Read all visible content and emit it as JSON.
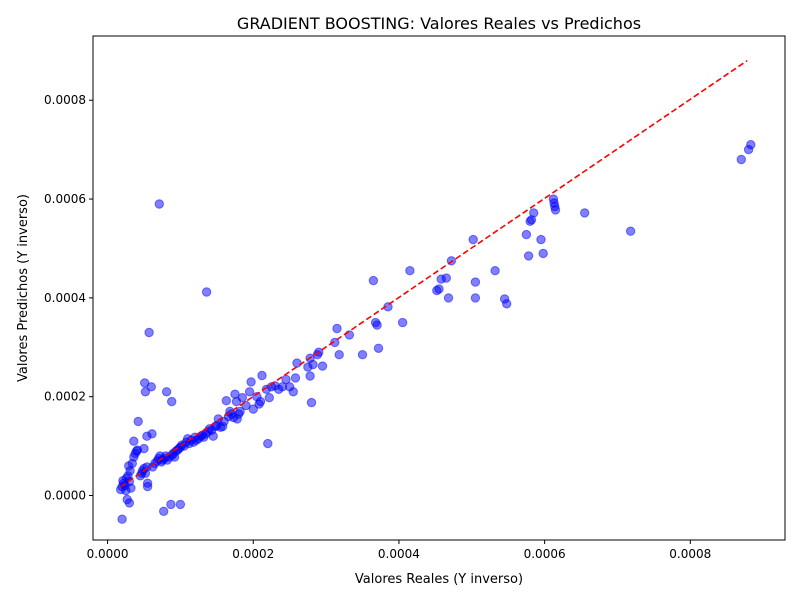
{
  "chart_data": {
    "type": "scatter",
    "title": "GRADIENT BOOSTING: Valores Reales vs Predichos",
    "xlabel": "Valores Reales (Y inverso)",
    "ylabel": "Valores Predichos (Y inverso)",
    "xlim": [
      -2e-05,
      0.00093
    ],
    "ylim": [
      -9e-05,
      0.00093
    ],
    "xticks": [
      0,
      0.0002,
      0.0004,
      0.0006,
      0.0008
    ],
    "xtick_labels": [
      "0.0000",
      "0.0002",
      "0.0004",
      "0.0006",
      "0.0008"
    ],
    "yticks": [
      0,
      0.0002,
      0.0004,
      0.0006,
      0.0008
    ],
    "ytick_labels": [
      "0.0000",
      "0.0002",
      "0.0004",
      "0.0006",
      "0.0008"
    ],
    "grid": false,
    "point_color": "#0000ff",
    "point_alpha": 0.5,
    "reference_line": {
      "color": "#ff0000",
      "style": "dashed",
      "from": [
        1.8e-05,
        1.8e-05
      ],
      "to": [
        0.000878,
        0.00088
      ]
    },
    "points": [
      [
        1.8e-05,
        1.2e-05
      ],
      [
        2e-05,
        1.8e-05
      ],
      [
        2.2e-05,
        2.5e-05
      ],
      [
        2.4e-05,
        2e-05
      ],
      [
        2.1e-05,
        3e-05
      ],
      [
        2.5e-05,
        1e-05
      ],
      [
        2.6e-05,
        3.5e-05
      ],
      [
        2.8e-05,
        4e-05
      ],
      [
        3e-05,
        2.8e-05
      ],
      [
        3.1e-05,
        5e-05
      ],
      [
        2.9e-05,
        6e-05
      ],
      [
        3.2e-05,
        1.5e-05
      ],
      [
        2.7e-05,
        -8e-06
      ],
      [
        3e-05,
        -1.5e-05
      ],
      [
        2e-05,
        -4.8e-05
      ],
      [
        3.4e-05,
        6.5e-05
      ],
      [
        3.6e-05,
        7.8e-05
      ],
      [
        3.8e-05,
        8.5e-05
      ],
      [
        4e-05,
        9e-05
      ],
      [
        4.1e-05,
        9.2e-05
      ],
      [
        3.6e-05,
        0.00011
      ],
      [
        4.2e-05,
        0.00015
      ],
      [
        4.5e-05,
        4e-05
      ],
      [
        4.7e-05,
        4.5e-05
      ],
      [
        4.8e-05,
        5e-05
      ],
      [
        5e-05,
        5.5e-05
      ],
      [
        5.2e-05,
        4.5e-05
      ],
      [
        5.4e-05,
        5.8e-05
      ],
      [
        5.5e-05,
        2.5e-05
      ],
      [
        5.5e-05,
        1.8e-05
      ],
      [
        5e-05,
        9.5e-05
      ],
      [
        5.2e-05,
        0.00021
      ],
      [
        5.1e-05,
        0.000228
      ],
      [
        5.4e-05,
        0.00012
      ],
      [
        5.7e-05,
        0.00033
      ],
      [
        6e-05,
        0.00022
      ],
      [
        6.1e-05,
        0.000125
      ],
      [
        6.2e-05,
        5.8e-05
      ],
      [
        6.5e-05,
        6.5e-05
      ],
      [
        6.8e-05,
        7e-05
      ],
      [
        7e-05,
        7.5e-05
      ],
      [
        7.1e-05,
        0.00059
      ],
      [
        7.2e-05,
        8e-05
      ],
      [
        7.4e-05,
        6.8e-05
      ],
      [
        7.5e-05,
        7.2e-05
      ],
      [
        7.7e-05,
        -3.2e-05
      ],
      [
        7.8e-05,
        7.5e-05
      ],
      [
        8e-05,
        8e-05
      ],
      [
        8.1e-05,
        0.00021
      ],
      [
        8.2e-05,
        7.2e-05
      ],
      [
        8.5e-05,
        7.8e-05
      ],
      [
        8.7e-05,
        -1.8e-05
      ],
      [
        8.8e-05,
        0.00019
      ],
      [
        8.9e-05,
        8.2e-05
      ],
      [
        9e-05,
        8.5e-05
      ],
      [
        9.2e-05,
        7.8e-05
      ],
      [
        9.4e-05,
        9e-05
      ],
      [
        9.6e-05,
        9.2e-05
      ],
      [
        9.8e-05,
        9.5e-05
      ],
      [
        0.0001,
        9.8e-05
      ],
      [
        0.0001,
        -1.8e-05
      ],
      [
        0.000102,
        0.000102
      ],
      [
        0.000105,
        0.0001
      ],
      [
        0.000108,
        0.000108
      ],
      [
        0.00011,
        0.000115
      ],
      [
        0.000112,
        0.000105
      ],
      [
        0.000115,
        0.000112
      ],
      [
        0.000118,
        0.000108
      ],
      [
        0.00012,
        0.000118
      ],
      [
        0.000122,
        0.000112
      ],
      [
        0.000125,
        0.000115
      ],
      [
        0.000128,
        0.00012
      ],
      [
        0.00013,
        0.000122
      ],
      [
        0.000132,
        0.000118
      ],
      [
        0.000135,
        0.000125
      ],
      [
        0.000136,
        0.000412
      ],
      [
        0.000138,
        0.00013
      ],
      [
        0.00014,
        0.000135
      ],
      [
        0.000143,
        0.000132
      ],
      [
        0.000145,
        0.00012
      ],
      [
        0.000148,
        0.00014
      ],
      [
        0.00015,
        0.000142
      ],
      [
        0.000152,
        0.000155
      ],
      [
        0.000155,
        0.000138
      ],
      [
        0.000158,
        0.00014
      ],
      [
        0.00016,
        0.00015
      ],
      [
        0.000163,
        0.000192
      ],
      [
        0.000166,
        0.00016
      ],
      [
        0.000168,
        0.00017
      ],
      [
        0.00017,
        0.000165
      ],
      [
        0.000173,
        0.000158
      ],
      [
        0.000175,
        0.000205
      ],
      [
        0.000177,
        0.00019
      ],
      [
        0.000178,
        0.000155
      ],
      [
        0.00018,
        0.000165
      ],
      [
        0.000182,
        0.00017
      ],
      [
        0.000185,
        0.000198
      ],
      [
        0.00019,
        0.000182
      ],
      [
        0.000195,
        0.00021
      ],
      [
        0.000197,
        0.00023
      ],
      [
        0.0002,
        0.000175
      ],
      [
        0.000205,
        0.0002
      ],
      [
        0.000208,
        0.000185
      ],
      [
        0.00021,
        0.00019
      ],
      [
        0.000212,
        0.000243
      ],
      [
        0.000218,
        0.000215
      ],
      [
        0.00022,
        0.000105
      ],
      [
        0.000222,
        0.000198
      ],
      [
        0.000225,
        0.00022
      ],
      [
        0.00023,
        0.000222
      ],
      [
        0.000235,
        0.000215
      ],
      [
        0.00024,
        0.00022
      ],
      [
        0.000245,
        0.000235
      ],
      [
        0.00025,
        0.00022
      ],
      [
        0.000255,
        0.00021
      ],
      [
        0.000258,
        0.000238
      ],
      [
        0.00026,
        0.000268
      ],
      [
        0.000275,
        0.00026
      ],
      [
        0.000278,
        0.000278
      ],
      [
        0.000278,
        0.000242
      ],
      [
        0.00028,
        0.000188
      ],
      [
        0.000282,
        0.000265
      ],
      [
        0.000288,
        0.000285
      ],
      [
        0.00029,
        0.00029
      ],
      [
        0.000295,
        0.000262
      ],
      [
        0.000312,
        0.00031
      ],
      [
        0.000315,
        0.000338
      ],
      [
        0.000318,
        0.000285
      ],
      [
        0.000332,
        0.000325
      ],
      [
        0.00035,
        0.000285
      ],
      [
        0.000365,
        0.000435
      ],
      [
        0.000368,
        0.00035
      ],
      [
        0.00037,
        0.000345
      ],
      [
        0.000372,
        0.000298
      ],
      [
        0.000385,
        0.000382
      ],
      [
        0.000405,
        0.00035
      ],
      [
        0.000415,
        0.000455
      ],
      [
        0.000452,
        0.000415
      ],
      [
        0.000455,
        0.000418
      ],
      [
        0.000458,
        0.000438
      ],
      [
        0.000465,
        0.00044
      ],
      [
        0.000468,
        0.0004
      ],
      [
        0.000472,
        0.000475
      ],
      [
        0.000502,
        0.000518
      ],
      [
        0.000505,
        0.0004
      ],
      [
        0.000505,
        0.000432
      ],
      [
        0.000532,
        0.000455
      ],
      [
        0.000545,
        0.000398
      ],
      [
        0.000548,
        0.000388
      ],
      [
        0.000575,
        0.000528
      ],
      [
        0.000578,
        0.000485
      ],
      [
        0.00058,
        0.000555
      ],
      [
        0.000582,
        0.000558
      ],
      [
        0.000585,
        0.000572
      ],
      [
        0.000595,
        0.000518
      ],
      [
        0.000598,
        0.00049
      ],
      [
        0.000612,
        0.0006
      ],
      [
        0.000613,
        0.000592
      ],
      [
        0.000614,
        0.000585
      ],
      [
        0.000615,
        0.000578
      ],
      [
        0.000655,
        0.000572
      ],
      [
        0.000718,
        0.000535
      ],
      [
        0.00087,
        0.00068
      ],
      [
        0.00088,
        0.0007
      ],
      [
        0.000883,
        0.00071
      ]
    ]
  }
}
